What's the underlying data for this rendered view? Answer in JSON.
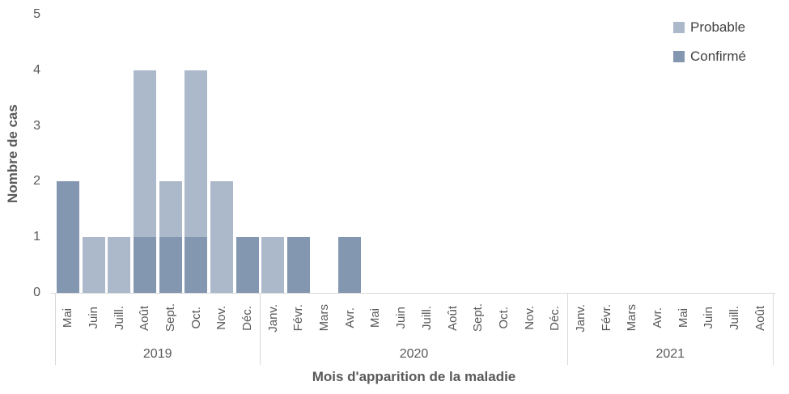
{
  "colors": {
    "probable": "#ACB9CA",
    "confirme": "#8497B0",
    "axis_line": "#D9D9D9",
    "label_text": "#595959",
    "legend_text": "#404040",
    "background": "#FFFFFF"
  },
  "legend": {
    "items": [
      {
        "label": "Probable",
        "color": "#ACB9CA"
      },
      {
        "label": "Confirmé",
        "color": "#8497B0"
      }
    ]
  },
  "axes": {
    "y_title": "Nombre de cas",
    "x_title": "Mois d'apparition de la maladie"
  },
  "chart_data": {
    "type": "bar",
    "stacked": true,
    "title": "",
    "xlabel": "Mois d'apparition de la maladie",
    "ylabel": "Nombre de cas",
    "ylim": [
      0,
      5
    ],
    "yticks": [
      0,
      1,
      2,
      3,
      4,
      5
    ],
    "grid": false,
    "legend_position": "top-right",
    "groups": [
      {
        "year": "2019",
        "months": [
          "Mai",
          "Juin",
          "Juill.",
          "Août",
          "Sept.",
          "Oct.",
          "Nov.",
          "Déc."
        ]
      },
      {
        "year": "2020",
        "months": [
          "Janv.",
          "Févr.",
          "Mars",
          "Avr.",
          "Mai",
          "Juin",
          "Juill.",
          "Août",
          "Sept.",
          "Oct.",
          "Nov.",
          "Déc."
        ]
      },
      {
        "year": "2021",
        "months": [
          "Janv.",
          "Févr.",
          "Mars",
          "Avr.",
          "Mai",
          "Juin",
          "Juill.",
          "Août"
        ]
      }
    ],
    "series": [
      {
        "name": "Confirmé",
        "color": "#8497B0",
        "values": [
          2,
          0,
          0,
          1,
          1,
          1,
          0,
          1,
          0,
          1,
          0,
          1,
          0,
          0,
          0,
          0,
          0,
          0,
          0,
          0,
          0,
          0,
          0,
          0,
          0,
          0,
          0,
          0
        ]
      },
      {
        "name": "Probable",
        "color": "#ACB9CA",
        "values": [
          0,
          1,
          1,
          3,
          1,
          3,
          2,
          0,
          1,
          0,
          0,
          0,
          0,
          0,
          0,
          0,
          0,
          0,
          0,
          0,
          0,
          0,
          0,
          0,
          0,
          0,
          0,
          0
        ]
      }
    ]
  }
}
